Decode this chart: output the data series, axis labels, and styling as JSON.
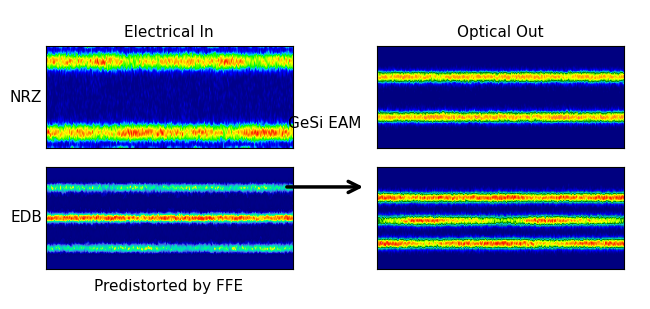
{
  "title_left": "Electrical In",
  "title_right": "Optical Out",
  "label_nrz": "NRZ",
  "label_edb": "EDB",
  "label_bottom": "Predistorted by FFE",
  "label_center": "GeSi EAM",
  "background_color": "#ffffff",
  "fig_width": 6.5,
  "fig_height": 3.09,
  "dpi": 100
}
